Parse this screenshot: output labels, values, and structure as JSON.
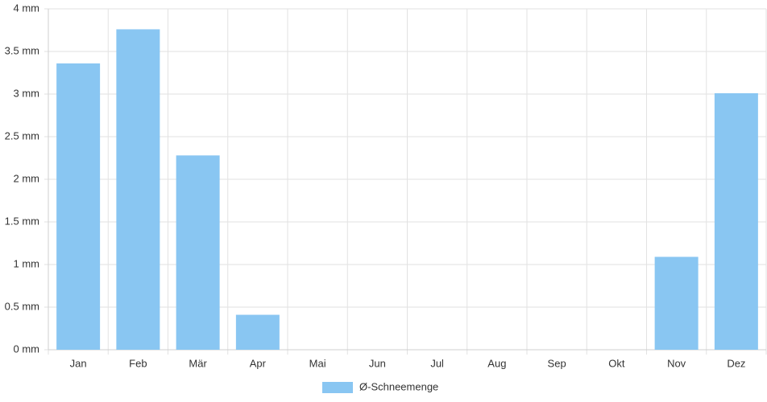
{
  "chart_data": {
    "type": "bar",
    "categories": [
      "Jan",
      "Feb",
      "Mär",
      "Apr",
      "Mai",
      "Jun",
      "Jul",
      "Aug",
      "Sep",
      "Okt",
      "Nov",
      "Dez"
    ],
    "series": [
      {
        "name": "Ø-Schneemenge",
        "color": "#89c6f2",
        "values": [
          3.36,
          3.76,
          2.28,
          0.41,
          0,
          0,
          0,
          0,
          0,
          0,
          1.09,
          3.01
        ]
      }
    ],
    "ylim": [
      0,
      4
    ],
    "yticks": [
      {
        "value": 0,
        "label": "0 mm"
      },
      {
        "value": 0.5,
        "label": "0.5 mm"
      },
      {
        "value": 1,
        "label": "1 mm"
      },
      {
        "value": 1.5,
        "label": "1.5 mm"
      },
      {
        "value": 2,
        "label": "2 mm"
      },
      {
        "value": 2.5,
        "label": "2.5 mm"
      },
      {
        "value": 3,
        "label": "3 mm"
      },
      {
        "value": 3.5,
        "label": "3.5 mm"
      },
      {
        "value": 4,
        "label": "4 mm"
      }
    ],
    "grid": true,
    "legend": "bottom"
  }
}
